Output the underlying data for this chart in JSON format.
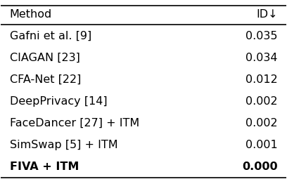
{
  "title_col1": "Method",
  "title_col2": "ID↓",
  "rows": [
    {
      "method": "Gafni et al. [9]",
      "value": "0.035",
      "bold": false
    },
    {
      "method": "CIAGAN [23]",
      "value": "0.034",
      "bold": false
    },
    {
      "method": "CFA-Net [22]",
      "value": "0.012",
      "bold": false
    },
    {
      "method": "DeepPrivacy [14]",
      "value": "0.002",
      "bold": false
    },
    {
      "method": "FaceDancer [27] + ITM",
      "value": "0.002",
      "bold": false
    },
    {
      "method": "SimSwap [5] + ITM",
      "value": "0.001",
      "bold": false
    },
    {
      "method": "FIVA + ITM",
      "value": "0.000",
      "bold": true
    }
  ],
  "background_color": "#ffffff",
  "text_color": "#000000",
  "font_size": 11.5,
  "header_font_size": 11.5
}
